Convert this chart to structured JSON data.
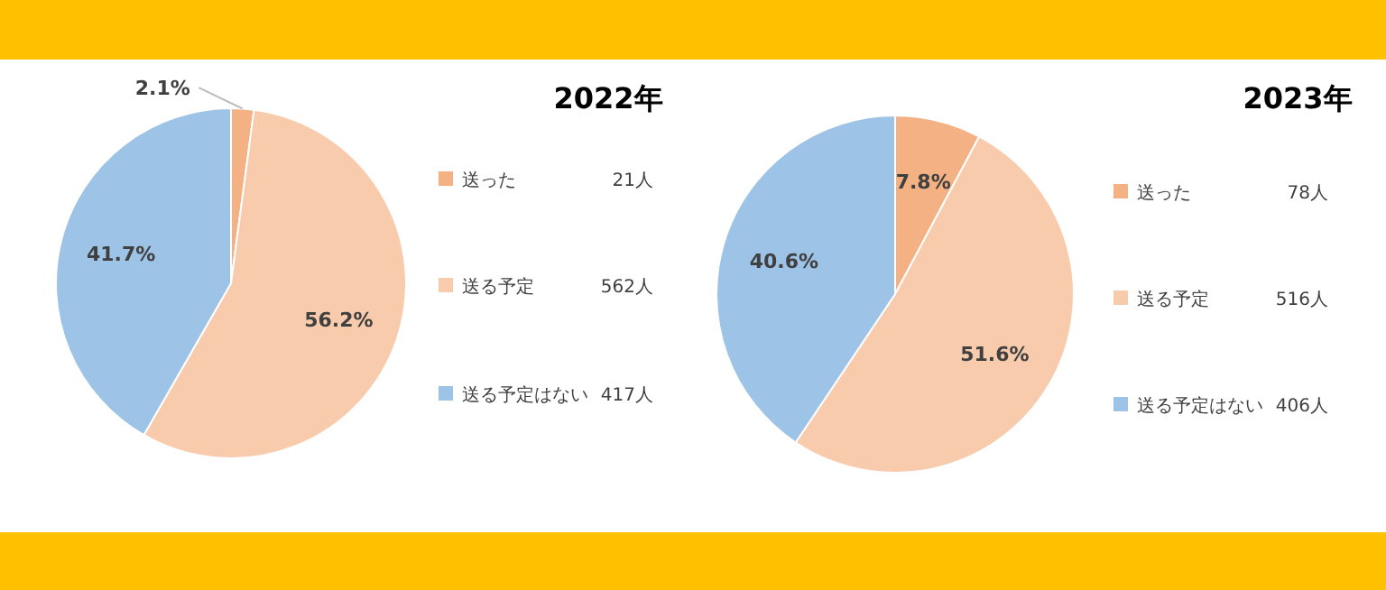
{
  "chart_data": [
    {
      "type": "pie",
      "title": "2022年",
      "categories": [
        "送った",
        "送る予定",
        "送る予定はない"
      ],
      "values": [
        2.1,
        56.2,
        41.7
      ],
      "value_labels": [
        "2.1%",
        "56.2%",
        "41.7%"
      ],
      "colors": [
        "#f4b183",
        "#f8cbad",
        "#9dc3e6"
      ],
      "legend": "right",
      "annotations": [
        "21人",
        "562人",
        "417人"
      ]
    },
    {
      "type": "pie",
      "title": "2023年",
      "categories": [
        "送った",
        "送る予定",
        "送る予定はない"
      ],
      "values": [
        7.8,
        51.6,
        40.6
      ],
      "value_labels": [
        "7.8%",
        "51.6%",
        "40.6%"
      ],
      "colors": [
        "#f4b183",
        "#f8cbad",
        "#9dc3e6"
      ],
      "legend": "right",
      "annotations": [
        "78人",
        "516人",
        "406人"
      ]
    }
  ]
}
